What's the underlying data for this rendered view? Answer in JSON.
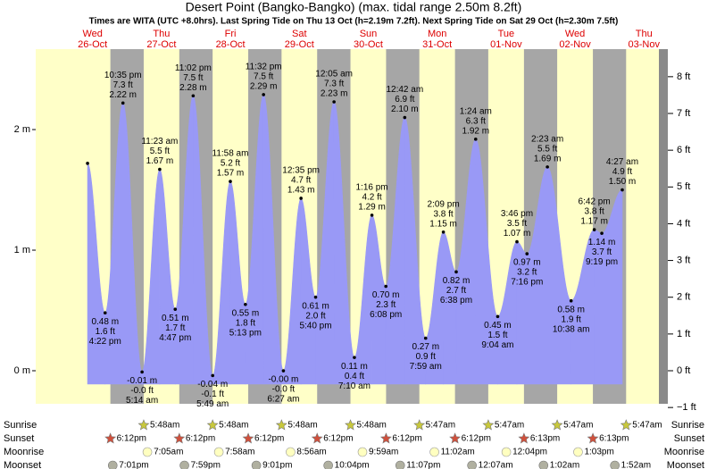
{
  "chart_data": {
    "type": "tide",
    "title": "Desert Point (Bangko-Bangko) (max. tidal range 2.50m 8.2ft)",
    "subtitle": "Times are WITA (UTC +8.0hrs). Last Spring Tide on Thu 13 Oct (h=2.19m 7.2ft). Next Spring Tide on Sat 29 Oct (h=2.30m 7.5ft)",
    "days": [
      {
        "weekday": "Wed",
        "date": "26-Oct"
      },
      {
        "weekday": "Thu",
        "date": "27-Oct"
      },
      {
        "weekday": "Fri",
        "date": "28-Oct"
      },
      {
        "weekday": "Sat",
        "date": "29-Oct"
      },
      {
        "weekday": "Sun",
        "date": "30-Oct"
      },
      {
        "weekday": "Mon",
        "date": "31-Oct"
      },
      {
        "weekday": "Tue",
        "date": "01-Nov"
      },
      {
        "weekday": "Wed",
        "date": "02-Nov"
      },
      {
        "weekday": "Thu",
        "date": "03-Nov"
      }
    ],
    "xlim": [
      -7.8,
      209.2
    ],
    "ylim": [
      -0.274,
      2.667
    ],
    "yticks": [
      {
        "value": 0,
        "label": "0 m"
      },
      {
        "value": 1,
        "label": "1 m"
      },
      {
        "value": 2,
        "label": "2 m"
      }
    ],
    "y2lim": [
      -0.899,
      8.75
    ],
    "y2ticks": [
      {
        "value": -1,
        "label": "−1 ft"
      },
      {
        "value": 0,
        "label": "0 ft"
      },
      {
        "value": 1,
        "label": "1 ft"
      },
      {
        "value": 2,
        "label": "2 ft"
      },
      {
        "value": 3,
        "label": "3 ft"
      },
      {
        "value": 4,
        "label": "4 ft"
      },
      {
        "value": 5,
        "label": "5 ft"
      },
      {
        "value": 6,
        "label": "6 ft"
      },
      {
        "value": 7,
        "label": "7 ft"
      },
      {
        "value": 8,
        "label": "8 ft"
      }
    ],
    "colors": {
      "day": "#ffffc8",
      "night": "#a6a6a6",
      "water": "#9999f6",
      "date": "#dd0000"
    },
    "tides": [
      {
        "x": 10.25,
        "m": 1.72,
        "kind": "high"
      },
      {
        "x": 16.37,
        "m": 0.48,
        "kind": "low",
        "m_label": "0.48 m",
        "ft_label": "1.6 ft",
        "time": "4:22 pm"
      },
      {
        "x": 22.58,
        "m": 2.22,
        "kind": "high",
        "m_label": "2.22 m",
        "ft_label": "7.3 ft",
        "time": "10:35 pm"
      },
      {
        "x": 29.23,
        "m": -0.01,
        "kind": "low",
        "m_label": "-0.01 m",
        "ft_label": "-0.0 ft",
        "time": "5:14 am"
      },
      {
        "x": 35.38,
        "m": 1.67,
        "kind": "high",
        "m_label": "1.67 m",
        "ft_label": "5.5 ft",
        "time": "11:23 am"
      },
      {
        "x": 40.78,
        "m": 0.51,
        "kind": "low",
        "m_label": "0.51 m",
        "ft_label": "1.7 ft",
        "time": "4:47 pm"
      },
      {
        "x": 47.03,
        "m": 2.28,
        "kind": "high",
        "m_label": "2.28 m",
        "ft_label": "7.5 ft",
        "time": "11:02 pm"
      },
      {
        "x": 53.82,
        "m": -0.04,
        "kind": "low",
        "m_label": "-0.04 m",
        "ft_label": "-0.1 ft",
        "time": "5:49 am"
      },
      {
        "x": 59.97,
        "m": 1.57,
        "kind": "high",
        "m_label": "1.57 m",
        "ft_label": "5.2 ft",
        "time": "11:58 am"
      },
      {
        "x": 65.22,
        "m": 0.55,
        "kind": "low",
        "m_label": "0.55 m",
        "ft_label": "1.8 ft",
        "time": "5:13 pm"
      },
      {
        "x": 71.53,
        "m": 2.29,
        "kind": "high",
        "m_label": "2.29 m",
        "ft_label": "7.5 ft",
        "time": "11:32 pm"
      },
      {
        "x": 78.45,
        "m": -0.0,
        "kind": "low",
        "m_label": "-0.00 m",
        "ft_label": "-0.0 ft",
        "time": "6:27 am"
      },
      {
        "x": 84.58,
        "m": 1.43,
        "kind": "high",
        "m_label": "1.43 m",
        "ft_label": "4.7 ft",
        "time": "12:35 pm"
      },
      {
        "x": 89.67,
        "m": 0.61,
        "kind": "low",
        "m_label": "0.61 m",
        "ft_label": "2.0 ft",
        "time": "5:40 pm"
      },
      {
        "x": 96.08,
        "m": 2.23,
        "kind": "high",
        "m_label": "2.23 m",
        "ft_label": "7.3 ft",
        "time": "12:05 am"
      },
      {
        "x": 103.17,
        "m": 0.11,
        "kind": "low",
        "m_label": "0.11 m",
        "ft_label": "0.4 ft",
        "time": "7:10 am"
      },
      {
        "x": 109.27,
        "m": 1.29,
        "kind": "high",
        "m_label": "1.29 m",
        "ft_label": "4.2 ft",
        "time": "1:16 pm"
      },
      {
        "x": 114.13,
        "m": 0.7,
        "kind": "low",
        "m_label": "0.70 m",
        "ft_label": "2.3 ft",
        "time": "6:08 pm"
      },
      {
        "x": 120.7,
        "m": 2.1,
        "kind": "high",
        "m_label": "2.10 m",
        "ft_label": "6.9 ft",
        "time": "12:42 am"
      },
      {
        "x": 127.98,
        "m": 0.27,
        "kind": "low",
        "m_label": "0.27 m",
        "ft_label": "0.9 ft",
        "time": "7:59 am"
      },
      {
        "x": 134.15,
        "m": 1.15,
        "kind": "high",
        "m_label": "1.15 m",
        "ft_label": "3.8 ft",
        "time": "2:09 pm"
      },
      {
        "x": 138.63,
        "m": 0.82,
        "kind": "low",
        "m_label": "0.82 m",
        "ft_label": "2.7 ft",
        "time": "6:38 pm"
      },
      {
        "x": 145.4,
        "m": 1.92,
        "kind": "high",
        "m_label": "1.92 m",
        "ft_label": "6.3 ft",
        "time": "1:24 am"
      },
      {
        "x": 153.07,
        "m": 0.45,
        "kind": "low",
        "m_label": "0.45 m",
        "ft_label": "1.5 ft",
        "time": "9:04 am"
      },
      {
        "x": 159.77,
        "m": 1.07,
        "kind": "high",
        "m_label": "1.07 m",
        "ft_label": "3.5 ft",
        "time": "3:46 pm"
      },
      {
        "x": 163.27,
        "m": 0.97,
        "kind": "low",
        "m_label": "0.97 m",
        "ft_label": "3.2 ft",
        "time": "7:16 pm"
      },
      {
        "x": 170.38,
        "m": 1.69,
        "kind": "high",
        "m_label": "1.69 m",
        "ft_label": "5.5 ft",
        "time": "2:23 am"
      },
      {
        "x": 178.63,
        "m": 0.58,
        "kind": "low",
        "m_label": "0.58 m",
        "ft_label": "1.9 ft",
        "time": "10:38 am"
      },
      {
        "x": 186.7,
        "m": 1.17,
        "kind": "high",
        "m_label": "1.17 m",
        "ft_label": "3.8 ft",
        "time": "6:42 pm"
      },
      {
        "x": 189.32,
        "m": 1.14,
        "kind": "low",
        "m_label": "1.14 m",
        "ft_label": "3.7 ft",
        "time": "9:19 pm"
      },
      {
        "x": 196.45,
        "m": 1.5,
        "kind": "high",
        "m_label": "1.50 m",
        "ft_label": "4.9 ft",
        "time": "4:27 am"
      }
    ],
    "sun_moon": [
      {
        "name": "Sunrise",
        "icon": "sunrise",
        "events": [
          {
            "day": 1,
            "time": "5:48am"
          },
          {
            "day": 2,
            "time": "5:48am"
          },
          {
            "day": 3,
            "time": "5:48am"
          },
          {
            "day": 4,
            "time": "5:48am"
          },
          {
            "day": 5,
            "time": "5:47am"
          },
          {
            "day": 6,
            "time": "5:47am"
          },
          {
            "day": 7,
            "time": "5:47am"
          },
          {
            "day": 8,
            "time": "5:47am"
          }
        ]
      },
      {
        "name": "Sunset",
        "icon": "sunset",
        "events": [
          {
            "day": 0,
            "time": "6:12pm"
          },
          {
            "day": 1,
            "time": "6:12pm"
          },
          {
            "day": 2,
            "time": "6:12pm"
          },
          {
            "day": 3,
            "time": "6:12pm"
          },
          {
            "day": 4,
            "time": "6:12pm"
          },
          {
            "day": 5,
            "time": "6:12pm"
          },
          {
            "day": 6,
            "time": "6:13pm"
          },
          {
            "day": 7,
            "time": "6:13pm"
          }
        ]
      },
      {
        "name": "Moonrise",
        "icon": "moonrise",
        "events": [
          {
            "day": 1,
            "time": "7:05am"
          },
          {
            "day": 2,
            "time": "7:58am"
          },
          {
            "day": 3,
            "time": "8:56am"
          },
          {
            "day": 4,
            "time": "9:59am"
          },
          {
            "day": 5,
            "time": "11:02am"
          },
          {
            "day": 6,
            "time": "12:04pm"
          },
          {
            "day": 7,
            "time": "1:03pm"
          }
        ]
      },
      {
        "name": "Moonset",
        "icon": "moonset",
        "events": [
          {
            "day": 0,
            "time": "7:01pm"
          },
          {
            "day": 1,
            "time": "7:59pm"
          },
          {
            "day": 2,
            "time": "9:01pm"
          },
          {
            "day": 3,
            "time": "10:04pm"
          },
          {
            "day": 4,
            "time": "11:07pm"
          },
          {
            "day": 6,
            "time": "12:07am"
          },
          {
            "day": 7,
            "time": "1:02am"
          },
          {
            "day": 8,
            "time": "1:52am"
          }
        ]
      }
    ]
  }
}
